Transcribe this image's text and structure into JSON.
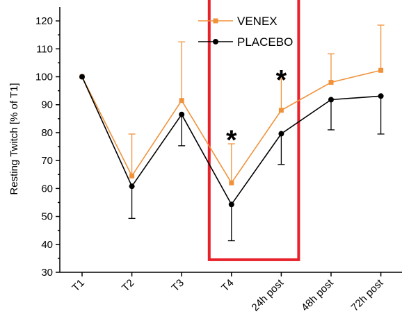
{
  "chart_data": {
    "type": "line",
    "title": "",
    "xlabel": "",
    "ylabel": "Resting Twitch [% of T1]",
    "categories": [
      "T1",
      "T2",
      "T3",
      "T4",
      "24h post",
      "48h post",
      "72h post"
    ],
    "ylim": [
      30,
      125
    ],
    "yticks": [
      30,
      40,
      50,
      60,
      70,
      80,
      90,
      100,
      110,
      120
    ],
    "legend_position": "top-center",
    "series": [
      {
        "name": "VENEX",
        "color": "#f0923a",
        "marker": "square",
        "error_direction": "up",
        "values": [
          100,
          64.5,
          91.5,
          62,
          88,
          98,
          102.3
        ],
        "errors": [
          0,
          15,
          21,
          14,
          11.2,
          10.2,
          16.2
        ]
      },
      {
        "name": "PLACEBO",
        "color": "#000000",
        "marker": "circle",
        "error_direction": "down",
        "values": [
          100,
          60.8,
          86.5,
          54.3,
          79.6,
          91.8,
          93.1
        ],
        "errors": [
          0,
          11.5,
          11.2,
          13,
          11,
          10.8,
          13.6
        ]
      }
    ],
    "annotations": [
      {
        "text": "*",
        "category_index": 3,
        "y": 79
      },
      {
        "text": "*",
        "category_index": 4,
        "y": 100.5
      }
    ],
    "highlight": {
      "color": "#e8202a",
      "from_category": 3,
      "to_category": 4,
      "y_range": [
        34.5,
        128
      ]
    }
  }
}
